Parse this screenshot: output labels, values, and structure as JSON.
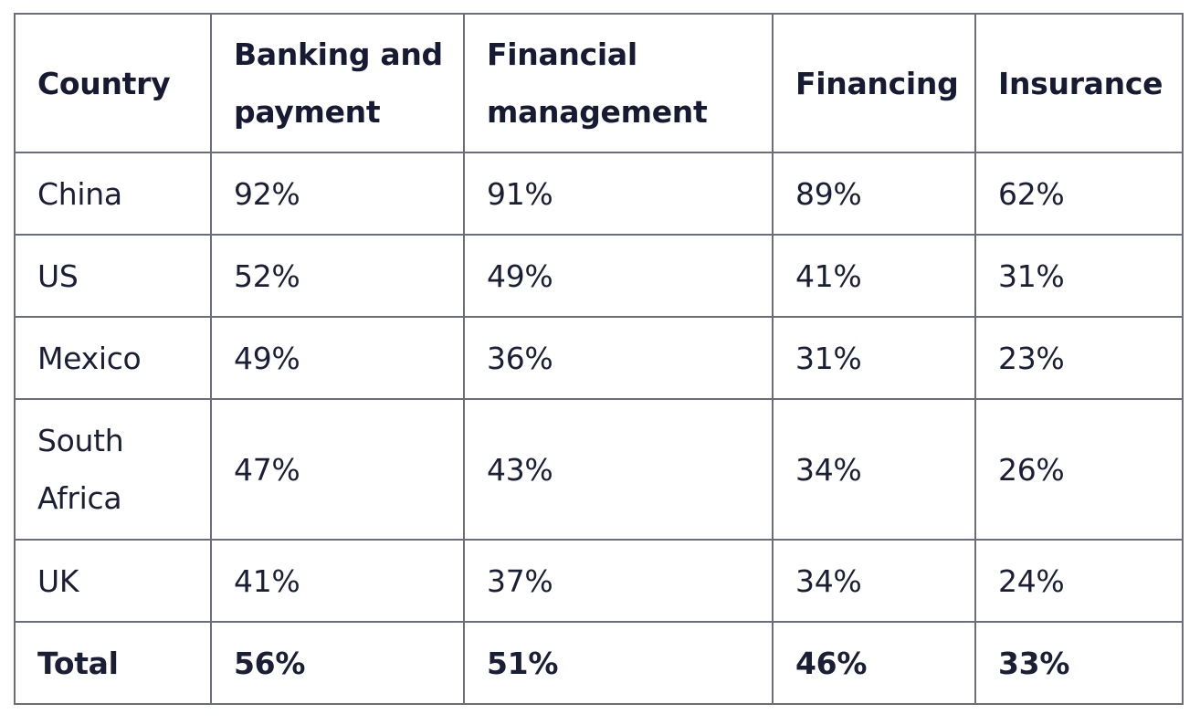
{
  "table": {
    "headers": [
      "Country",
      "Banking and payment",
      "Financial management",
      "Financing",
      "Insurance"
    ],
    "rows": [
      [
        "China",
        "92%",
        "91%",
        "89%",
        "62%"
      ],
      [
        "US",
        "52%",
        "49%",
        "41%",
        "31%"
      ],
      [
        "Mexico",
        "49%",
        "36%",
        "31%",
        "23%"
      ],
      [
        "South Africa",
        "47%",
        "43%",
        "34%",
        "26%"
      ],
      [
        "UK",
        "41%",
        "37%",
        "34%",
        "24%"
      ]
    ],
    "total": [
      "Total",
      "56%",
      "51%",
      "46%",
      "33%"
    ]
  },
  "colors": {
    "text": "#1b1f36",
    "border": "#6b6e78",
    "background": "#ffffff"
  }
}
